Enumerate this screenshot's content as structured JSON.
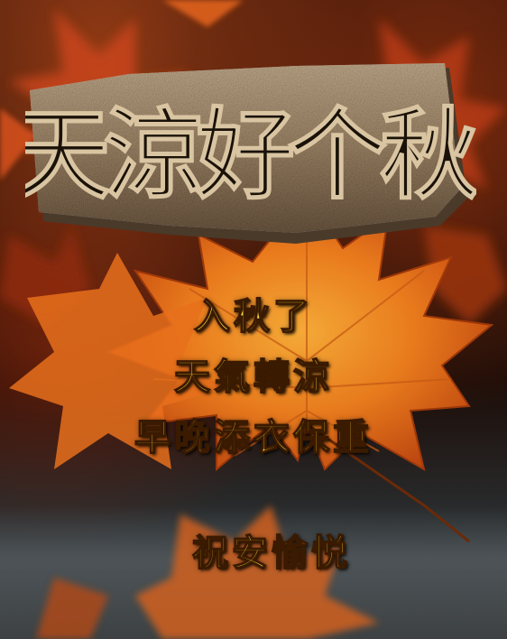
{
  "title": {
    "text": "天涼好个秋"
  },
  "blessing": {
    "line1": "入秋了",
    "line2": "天氣轉涼",
    "line3": "早晚添衣保重",
    "line4": "祝安愉悦"
  },
  "colors": {
    "text_fill": "#ffd83a",
    "leaf_orange": "#f07a1c",
    "stone": "#a58c6e"
  }
}
